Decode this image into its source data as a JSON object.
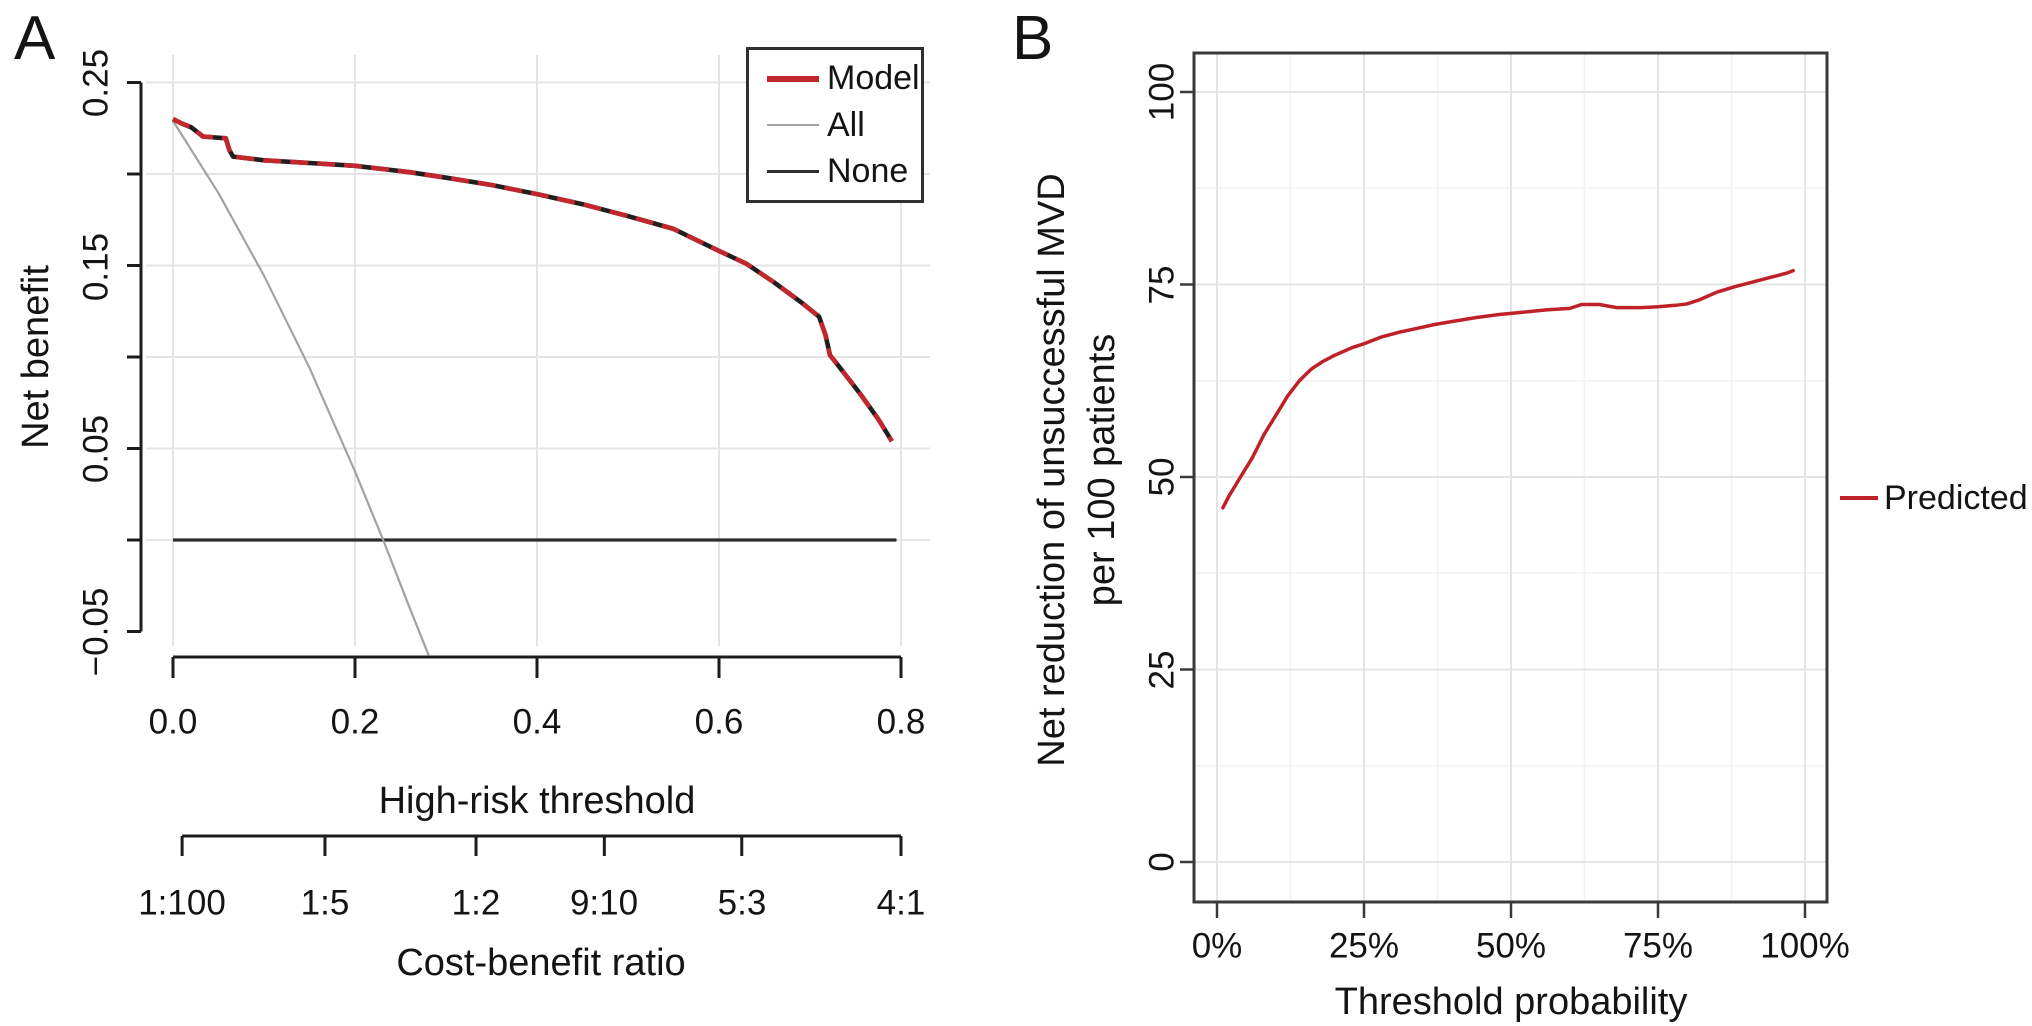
{
  "colors": {
    "model_red": "#c1272d",
    "model_dark": "#1f1f1f",
    "all_gray": "#a2a2a2",
    "none_black": "#2f2f2f",
    "predicted_red": "#bf2129",
    "axis": "#1c1c1c",
    "panel_border": "#3a3a3a",
    "grid_major": "#e4e4e4",
    "grid_minor": "#f2f2f2"
  },
  "panel_a": {
    "letter": "A",
    "y_axis": {
      "title": "Net benefit",
      "tick_labels": [
        "0.25",
        "0.15",
        "0.05",
        "−0.05"
      ]
    },
    "x_axis": {
      "title": "High-risk threshold",
      "tick_labels": [
        "0.0",
        "0.2",
        "0.4",
        "0.6",
        "0.8"
      ]
    },
    "cb_axis": {
      "title": "Cost-benefit ratio",
      "tick_labels": [
        "1:100",
        "1:5",
        "1:2",
        "9:10",
        "5:3",
        "4:1"
      ]
    },
    "legend": {
      "items": [
        {
          "label": "Model"
        },
        {
          "label": "All"
        },
        {
          "label": "None"
        }
      ]
    }
  },
  "panel_b": {
    "letter": "B",
    "y_axis": {
      "title_line1": "Net reduction of unsuccessful MVD",
      "title_line2": "per 100 patients",
      "tick_labels": [
        "0",
        "25",
        "50",
        "75",
        "100"
      ]
    },
    "x_axis": {
      "title": "Threshold probability",
      "tick_labels": [
        "0%",
        "25%",
        "50%",
        "75%",
        "100%"
      ]
    },
    "legend": {
      "label": "Predicted"
    }
  },
  "chart_data": [
    {
      "type": "line",
      "title": "Decision curve analysis (panel A)",
      "xlabel": "High-risk threshold",
      "ylabel": "Net benefit",
      "x2label": "Cost-benefit ratio",
      "xlim": [
        0,
        0.8
      ],
      "ylim": [
        -0.05,
        0.25
      ],
      "xticks": [
        0,
        0.2,
        0.4,
        0.6,
        0.8
      ],
      "yticks": [
        -0.05,
        0,
        0.05,
        0.1,
        0.15,
        0.2,
        0.25
      ],
      "ytick_labeled": [
        -0.05,
        0.05,
        0.15,
        0.25
      ],
      "x2ticks": [
        0.01,
        0.167,
        0.333,
        0.474,
        0.625,
        0.8
      ],
      "grid": true,
      "legend_position": "top-right",
      "series": [
        {
          "name": "Model",
          "points": [
            [
              0,
              0.23
            ],
            [
              0.01,
              0.2275
            ],
            [
              0.02,
              0.2255
            ],
            [
              0.033,
              0.2205
            ],
            [
              0.058,
              0.2195
            ],
            [
              0.062,
              0.213
            ],
            [
              0.066,
              0.2095
            ],
            [
              0.1,
              0.2075
            ],
            [
              0.15,
              0.206
            ],
            [
              0.2,
              0.2045
            ],
            [
              0.26,
              0.201
            ],
            [
              0.3,
              0.198
            ],
            [
              0.35,
              0.194
            ],
            [
              0.4,
              0.189
            ],
            [
              0.45,
              0.1835
            ],
            [
              0.5,
              0.177
            ],
            [
              0.55,
              0.17
            ],
            [
              0.6,
              0.158
            ],
            [
              0.63,
              0.151
            ],
            [
              0.66,
              0.141
            ],
            [
              0.69,
              0.13
            ],
            [
              0.71,
              0.122
            ],
            [
              0.717,
              0.112
            ],
            [
              0.722,
              0.101
            ],
            [
              0.73,
              0.096
            ],
            [
              0.755,
              0.08
            ],
            [
              0.775,
              0.066
            ],
            [
              0.79,
              0.054
            ]
          ]
        },
        {
          "name": "All",
          "points": [
            [
              0,
              0.229
            ],
            [
              0.05,
              0.1895
            ],
            [
              0.1,
              0.1444
            ],
            [
              0.15,
              0.0941
            ],
            [
              0.2,
              0.0375
            ],
            [
              0.231,
              0.0
            ],
            [
              0.26,
              -0.037
            ],
            [
              0.281,
              -0.063
            ]
          ]
        },
        {
          "name": "None",
          "points": [
            [
              0,
              0
            ],
            [
              0.795,
              0
            ]
          ]
        }
      ]
    },
    {
      "type": "line",
      "title": "Net reduction curve (panel B)",
      "xlabel": "Threshold probability",
      "ylabel": "Net reduction of unsuccessful MVD per 100 patients",
      "xlim": [
        0,
        100
      ],
      "ylim": [
        0,
        100
      ],
      "xticks": [
        0,
        25,
        50,
        75,
        100
      ],
      "yticks": [
        0,
        25,
        50,
        75,
        100
      ],
      "minor_grid_step": 12.5,
      "grid": true,
      "legend_position": "right",
      "series": [
        {
          "name": "Predicted",
          "points": [
            [
              1,
              46
            ],
            [
              2,
              47.5
            ],
            [
              4,
              50
            ],
            [
              6,
              52.5
            ],
            [
              8,
              55.5
            ],
            [
              10,
              58
            ],
            [
              12,
              60.5
            ],
            [
              14,
              62.5
            ],
            [
              16,
              64
            ],
            [
              18,
              65
            ],
            [
              20,
              65.8
            ],
            [
              23,
              66.8
            ],
            [
              25,
              67.3
            ],
            [
              28,
              68.2
            ],
            [
              31,
              68.8
            ],
            [
              34,
              69.3
            ],
            [
              37,
              69.8
            ],
            [
              40,
              70.2
            ],
            [
              44,
              70.7
            ],
            [
              48,
              71.1
            ],
            [
              52,
              71.4
            ],
            [
              56,
              71.7
            ],
            [
              60,
              71.9
            ],
            [
              62,
              72.4
            ],
            [
              65,
              72.4
            ],
            [
              68,
              72.0
            ],
            [
              72,
              72.0
            ],
            [
              75,
              72.1
            ],
            [
              78,
              72.3
            ],
            [
              80,
              72.5
            ],
            [
              82,
              73.0
            ],
            [
              85,
              74.0
            ],
            [
              88,
              74.7
            ],
            [
              91,
              75.3
            ],
            [
              94,
              75.9
            ],
            [
              97,
              76.5
            ],
            [
              98,
              76.8
            ]
          ]
        }
      ]
    }
  ]
}
